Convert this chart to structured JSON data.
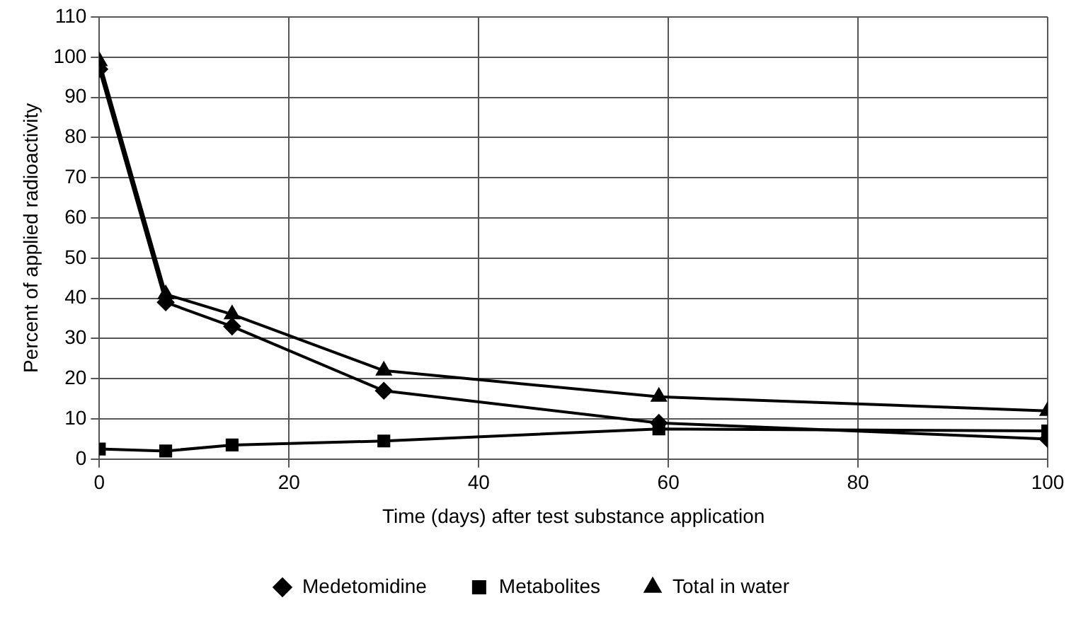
{
  "chart_data": {
    "type": "line",
    "xlabel": "Time (days) after test substance application",
    "ylabel": "Percent of applied radioactivity",
    "x": [
      0,
      7,
      14,
      30,
      59,
      100
    ],
    "series": [
      {
        "name": "Medetomidine",
        "color": "#000000",
        "marker": "diamond",
        "values": [
          97,
          39,
          33,
          17,
          9,
          5
        ]
      },
      {
        "name": "Metabolites",
        "color": "#000000",
        "marker": "square",
        "values": [
          2.5,
          2,
          3.5,
          4.5,
          7.5,
          7
        ]
      },
      {
        "name": "Total in water",
        "color": "#000000",
        "marker": "triangle",
        "values": [
          99,
          41,
          36,
          22,
          15.5,
          12
        ]
      }
    ],
    "xlim": [
      0,
      100
    ],
    "xticks": [
      0,
      20,
      40,
      60,
      80,
      100
    ],
    "ylim": [
      0,
      110
    ],
    "yticks": [
      0,
      10,
      20,
      30,
      40,
      50,
      60,
      70,
      80,
      90,
      100,
      110
    ],
    "grid": true,
    "legend": "bottom",
    "line_style": "solid"
  }
}
